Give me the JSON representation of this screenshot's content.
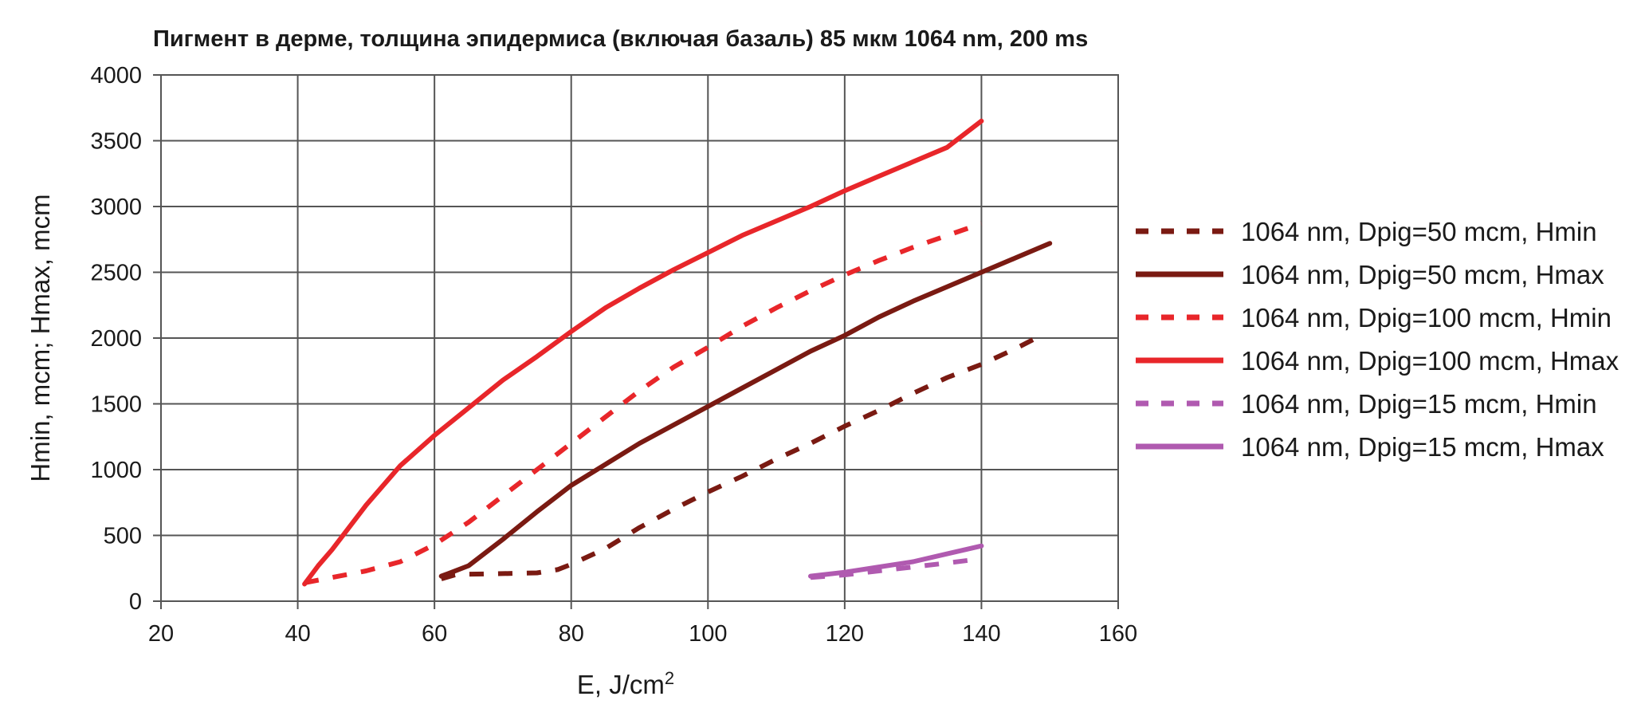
{
  "chart_data": {
    "type": "line",
    "title": "Пигмент в дерме, толщина эпидермиса (включая базаль) 85 мкм 1064 nm, 200 ms",
    "xlabel": "E, J/cm",
    "xlabel_sup": "2",
    "ylabel": "Hmin, mcm; Hmax, mcm",
    "xlim": [
      20,
      160
    ],
    "ylim": [
      0,
      4000
    ],
    "x_ticks": [
      20,
      40,
      60,
      80,
      100,
      120,
      140,
      160
    ],
    "y_ticks": [
      0,
      500,
      1000,
      1500,
      2000,
      2500,
      3000,
      3500,
      4000
    ],
    "x_tick_labels": [
      "20",
      "40",
      "60",
      "80",
      "100",
      "120",
      "140",
      "160"
    ],
    "y_tick_labels": [
      "0",
      "500",
      "1000",
      "1500",
      "2000",
      "2500",
      "3000",
      "3500",
      "4000"
    ],
    "grid": true,
    "legend_position": "right",
    "series": [
      {
        "name": "1064 nm, Dpig=50 mcm, Hmin",
        "color": "#7a1a12",
        "dash": "dashed",
        "x": [
          61,
          63,
          65,
          70,
          75,
          78,
          80,
          85,
          90,
          95,
          100,
          105,
          110,
          115,
          120,
          125,
          130,
          135,
          140,
          145,
          148
        ],
        "y": [
          170,
          200,
          205,
          210,
          215,
          240,
          280,
          400,
          560,
          700,
          830,
          950,
          1080,
          1200,
          1330,
          1450,
          1580,
          1700,
          1800,
          1920,
          2000
        ]
      },
      {
        "name": "1064 nm, Dpig=50 mcm, Hmax",
        "color": "#7a1a12",
        "dash": "solid",
        "x": [
          61,
          62,
          65,
          70,
          75,
          80,
          85,
          90,
          95,
          100,
          105,
          110,
          115,
          120,
          125,
          130,
          135,
          140,
          145,
          150
        ],
        "y": [
          190,
          210,
          270,
          470,
          680,
          880,
          1040,
          1200,
          1340,
          1480,
          1620,
          1760,
          1900,
          2020,
          2160,
          2280,
          2390,
          2500,
          2610,
          2720
        ]
      },
      {
        "name": "1064 nm, Dpig=100 mcm, Hmin",
        "color": "#e8262a",
        "dash": "dashed",
        "x": [
          41,
          45,
          50,
          55,
          60,
          65,
          70,
          75,
          80,
          85,
          90,
          95,
          100,
          105,
          110,
          115,
          120,
          125,
          130,
          135,
          140
        ],
        "y": [
          140,
          180,
          230,
          300,
          430,
          600,
          800,
          1000,
          1200,
          1400,
          1600,
          1780,
          1930,
          2090,
          2230,
          2360,
          2480,
          2590,
          2690,
          2780,
          2870
        ]
      },
      {
        "name": "1064 nm, Dpig=100 mcm, Hmax",
        "color": "#e8262a",
        "dash": "solid",
        "x": [
          41,
          43,
          45,
          50,
          55,
          60,
          65,
          70,
          75,
          80,
          85,
          90,
          95,
          100,
          105,
          110,
          115,
          120,
          125,
          130,
          135,
          140
        ],
        "y": [
          130,
          270,
          390,
          730,
          1030,
          1260,
          1470,
          1680,
          1860,
          2050,
          2230,
          2380,
          2520,
          2650,
          2780,
          2890,
          3000,
          3120,
          3230,
          3340,
          3450,
          3650
        ]
      },
      {
        "name": "1064 nm, Dpig=15 mcm, Hmin",
        "color": "#b05ab0",
        "dash": "dashed",
        "x": [
          115,
          120,
          125,
          130,
          135,
          138
        ],
        "y": [
          180,
          200,
          230,
          260,
          290,
          310
        ]
      },
      {
        "name": "1064 nm, Dpig=15 mcm, Hmax",
        "color": "#b05ab0",
        "dash": "solid",
        "x": [
          115,
          120,
          125,
          130,
          135,
          140
        ],
        "y": [
          190,
          220,
          260,
          300,
          360,
          420
        ]
      }
    ]
  }
}
